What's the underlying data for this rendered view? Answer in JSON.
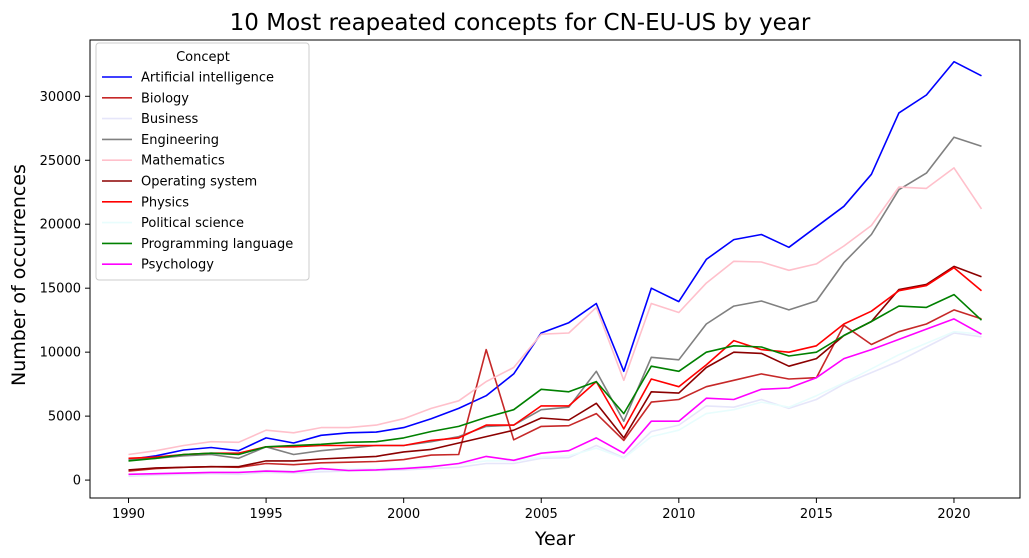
{
  "chart_data": {
    "type": "line",
    "title": "10 Most reapeated concepts for CN-EU-US by year",
    "xlabel": "Year",
    "ylabel": "Number of occurrences",
    "xlim": [
      1988.6,
      2022.4
    ],
    "ylim": [
      -1400,
      34400
    ],
    "x_ticks": [
      1990,
      1995,
      2000,
      2005,
      2010,
      2015,
      2020
    ],
    "y_ticks": [
      0,
      5000,
      10000,
      15000,
      20000,
      25000,
      30000
    ],
    "grid": false,
    "legend": {
      "title": "Concept",
      "placement": "top-left"
    },
    "x": [
      1990,
      1991,
      1992,
      1993,
      1994,
      1995,
      1996,
      1997,
      1998,
      1999,
      2000,
      2001,
      2002,
      2003,
      2004,
      2005,
      2006,
      2007,
      2008,
      2009,
      2010,
      2011,
      2012,
      2013,
      2014,
      2015,
      2016,
      2017,
      2018,
      2019,
      2020,
      2021
    ],
    "series": [
      {
        "name": "Artificial intelligence",
        "color": "#0000ff",
        "values": [
          1600,
          1900,
          2350,
          2550,
          2300,
          3300,
          2900,
          3500,
          3700,
          3750,
          4100,
          4800,
          5600,
          6600,
          8300,
          11500,
          12300,
          13800,
          8500,
          15000,
          13950,
          17250,
          18800,
          19200,
          18200,
          19800,
          21400,
          23900,
          28700,
          30100,
          32700,
          31600
        ]
      },
      {
        "name": "Biology",
        "color": "#c62828",
        "values": [
          700,
          900,
          1000,
          1050,
          1000,
          1300,
          1200,
          1350,
          1400,
          1450,
          1600,
          1950,
          2000,
          10200,
          3150,
          4200,
          4250,
          5200,
          3100,
          6100,
          6300,
          7300,
          7800,
          8300,
          7900,
          8000,
          12100,
          10600,
          11600,
          12200,
          13300,
          12600
        ]
      },
      {
        "name": "Business",
        "color": "#e6e6fa",
        "values": [
          300,
          400,
          450,
          500,
          450,
          600,
          550,
          650,
          700,
          750,
          800,
          900,
          1000,
          1300,
          1300,
          1700,
          1750,
          2700,
          1750,
          3800,
          4300,
          5800,
          5700,
          6300,
          5600,
          6300,
          7500,
          8400,
          9300,
          10400,
          11500,
          11200
        ]
      },
      {
        "name": "Engineering",
        "color": "#808080",
        "values": [
          1600,
          1700,
          1900,
          2000,
          1700,
          2600,
          2000,
          2300,
          2500,
          2700,
          2700,
          3000,
          3400,
          4200,
          4300,
          5500,
          5700,
          8500,
          4600,
          9600,
          9400,
          12200,
          13600,
          14000,
          13300,
          14000,
          17000,
          19200,
          22700,
          24000,
          26800,
          26100
        ]
      },
      {
        "name": "Mathematics",
        "color": "#ffc0cb",
        "values": [
          2000,
          2300,
          2700,
          3000,
          2950,
          3900,
          3700,
          4100,
          4100,
          4300,
          4800,
          5600,
          6200,
          7700,
          8800,
          11400,
          11500,
          13500,
          7800,
          13800,
          13100,
          15400,
          17100,
          17050,
          16400,
          16900,
          18300,
          19900,
          22900,
          22800,
          24400,
          21200
        ]
      },
      {
        "name": "Operating system",
        "color": "#8b0000",
        "values": [
          800,
          950,
          1000,
          1050,
          1050,
          1500,
          1500,
          1650,
          1750,
          1850,
          2200,
          2400,
          2900,
          3400,
          3900,
          4850,
          4700,
          6000,
          3300,
          6900,
          6800,
          8800,
          10000,
          9900,
          8900,
          9500,
          11300,
          12400,
          14900,
          15300,
          16700,
          15900
        ]
      },
      {
        "name": "Physics",
        "color": "#ff0000",
        "values": [
          1700,
          1800,
          2000,
          2100,
          2100,
          2600,
          2600,
          2700,
          2700,
          2700,
          2700,
          3100,
          3300,
          4300,
          4300,
          5800,
          5800,
          7700,
          4000,
          7900,
          7300,
          9000,
          10900,
          10200,
          10000,
          10500,
          12200,
          13200,
          14800,
          15200,
          16600,
          14800
        ]
      },
      {
        "name": "Political science",
        "color": "#e8fdfd",
        "values": [
          400,
          500,
          550,
          600,
          550,
          750,
          700,
          800,
          850,
          900,
          950,
          1100,
          1250,
          1500,
          1500,
          1800,
          1900,
          2500,
          1700,
          3400,
          3900,
          5200,
          5500,
          6100,
          5700,
          6600,
          7600,
          8700,
          9800,
          10700,
          11600,
          11400
        ]
      },
      {
        "name": "Programming language",
        "color": "#008000",
        "values": [
          1500,
          1700,
          2000,
          2100,
          2000,
          2600,
          2700,
          2800,
          2950,
          3000,
          3300,
          3800,
          4200,
          4900,
          5500,
          7100,
          6900,
          7700,
          5200,
          8900,
          8500,
          10000,
          10500,
          10400,
          9700,
          10000,
          11300,
          12400,
          13600,
          13500,
          14500,
          12500
        ]
      },
      {
        "name": "Psychology",
        "color": "#ff00ff",
        "values": [
          450,
          500,
          550,
          600,
          600,
          700,
          650,
          900,
          750,
          800,
          900,
          1050,
          1300,
          1850,
          1550,
          2100,
          2300,
          3300,
          2100,
          4600,
          4600,
          6400,
          6300,
          7100,
          7200,
          8000,
          9500,
          10200,
          11000,
          11800,
          12600,
          11400
        ]
      }
    ]
  }
}
